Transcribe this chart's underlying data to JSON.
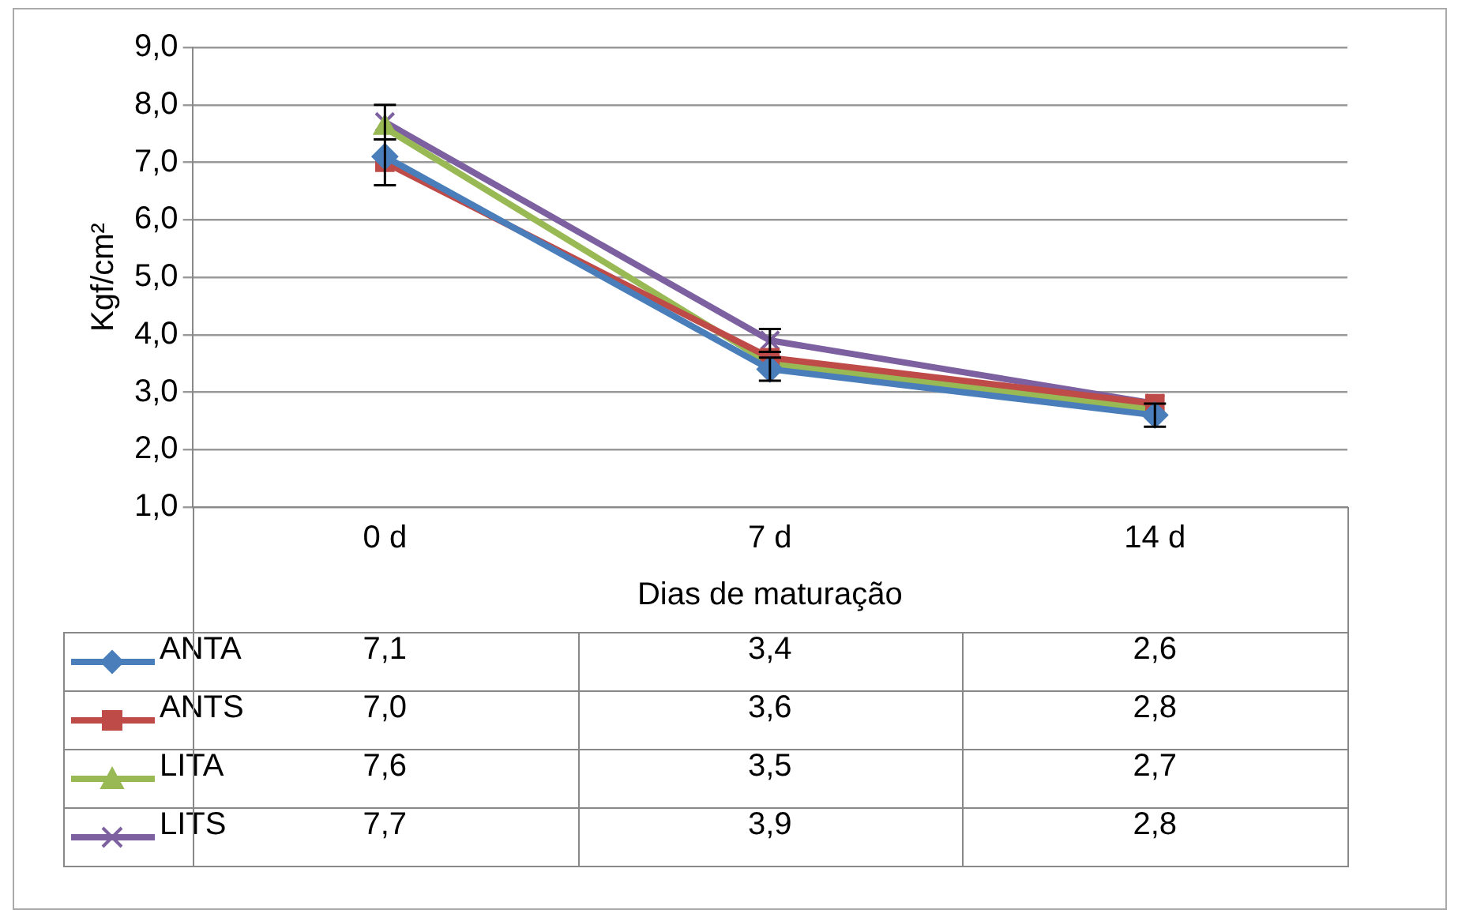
{
  "chart_data": {
    "type": "line",
    "xlabel": "Dias de maturação",
    "ylabel": "Kgf/cm²",
    "categories": [
      "0 d",
      "7 d",
      "14 d"
    ],
    "series": [
      {
        "name": "ANTA",
        "color": "#4a7ebb",
        "marker": "diamond",
        "values": [
          7.1,
          3.4,
          2.6
        ],
        "value_labels": [
          "7,1",
          "3,4",
          "2,6"
        ],
        "errors": [
          null,
          0.2,
          0.2
        ]
      },
      {
        "name": "ANTS",
        "color": "#be4b48",
        "marker": "square",
        "values": [
          7.0,
          3.6,
          2.8
        ],
        "value_labels": [
          "7,0",
          "3,6",
          "2,8"
        ],
        "errors": [
          0.4,
          null,
          null
        ]
      },
      {
        "name": "LITA",
        "color": "#98b954",
        "marker": "triangle",
        "values": [
          7.6,
          3.5,
          2.7
        ],
        "value_labels": [
          "7,6",
          "3,5",
          "2,7"
        ]
      },
      {
        "name": "LITS",
        "color": "#7d60a0",
        "marker": "cross",
        "values": [
          7.7,
          3.9,
          2.8
        ],
        "value_labels": [
          "7,7",
          "3,9",
          "2,8"
        ],
        "errors": [
          0.3,
          0.2,
          null
        ]
      }
    ],
    "ylim": [
      1,
      9
    ],
    "yticks": [
      {
        "value": 1,
        "label": "1,0"
      },
      {
        "value": 2,
        "label": "2,0"
      },
      {
        "value": 3,
        "label": "3,0"
      },
      {
        "value": 4,
        "label": "4,0"
      },
      {
        "value": 5,
        "label": "5,0"
      },
      {
        "value": 6,
        "label": "6,0"
      },
      {
        "value": 7,
        "label": "7,0"
      },
      {
        "value": 8,
        "label": "8,0"
      },
      {
        "value": 9,
        "label": "9,0"
      }
    ],
    "grid": "y",
    "legend": "bottom",
    "line_style": "solid"
  }
}
